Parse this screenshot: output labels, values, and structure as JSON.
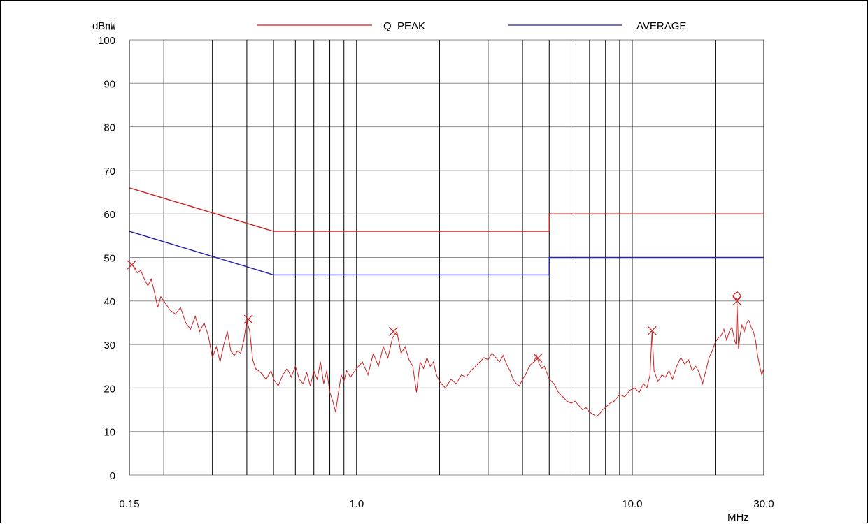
{
  "chart_data": {
    "type": "line",
    "title": "",
    "ylabel": "dB㎻",
    "xlabel": "MHz",
    "x_scale": "log",
    "xlim": [
      0.15,
      30.0
    ],
    "ylim": [
      0,
      100
    ],
    "y_ticks": [
      "0",
      "10",
      "20",
      "30",
      "40",
      "50",
      "60",
      "70",
      "80",
      "90",
      "100"
    ],
    "x_tick_labels": [
      {
        "value": 0.15,
        "label": "0.15"
      },
      {
        "value": 1.0,
        "label": "1.0"
      },
      {
        "value": 10.0,
        "label": "10.0"
      },
      {
        "value": 30.0,
        "label": "30.0"
      }
    ],
    "x_gridlines": [
      0.2,
      0.3,
      0.4,
      0.5,
      0.6,
      0.7,
      0.8,
      0.9,
      1.0,
      2,
      3,
      4,
      5,
      6,
      7,
      8,
      9,
      10,
      20,
      30
    ],
    "grid": true,
    "legend_position": "top",
    "series": [
      {
        "name": "Q_PEAK",
        "color": "#cc2222",
        "role": "limit",
        "points": [
          [
            0.15,
            66
          ],
          [
            0.5,
            56
          ],
          [
            5.0,
            56
          ],
          [
            5.0,
            60
          ],
          [
            30.0,
            60
          ]
        ]
      },
      {
        "name": "AVERAGE",
        "color": "#2222aa",
        "role": "limit",
        "points": [
          [
            0.15,
            56
          ],
          [
            0.5,
            46
          ],
          [
            5.0,
            46
          ],
          [
            5.0,
            50
          ],
          [
            30.0,
            50
          ]
        ]
      }
    ],
    "measurement": {
      "color": "#cc2222",
      "points": [
        [
          0.15,
          49
        ],
        [
          0.155,
          48
        ],
        [
          0.16,
          46.5
        ],
        [
          0.165,
          47
        ],
        [
          0.17,
          45
        ],
        [
          0.175,
          43.5
        ],
        [
          0.18,
          45
        ],
        [
          0.185,
          42
        ],
        [
          0.19,
          38.5
        ],
        [
          0.195,
          41
        ],
        [
          0.2,
          40
        ],
        [
          0.21,
          38
        ],
        [
          0.22,
          37
        ],
        [
          0.23,
          38.5
        ],
        [
          0.24,
          35
        ],
        [
          0.25,
          33.5
        ],
        [
          0.26,
          36.5
        ],
        [
          0.27,
          33
        ],
        [
          0.28,
          35
        ],
        [
          0.29,
          32
        ],
        [
          0.3,
          27
        ],
        [
          0.31,
          29.5
        ],
        [
          0.32,
          26
        ],
        [
          0.33,
          30
        ],
        [
          0.34,
          33
        ],
        [
          0.35,
          28.5
        ],
        [
          0.36,
          27.5
        ],
        [
          0.37,
          28.5
        ],
        [
          0.38,
          28
        ],
        [
          0.39,
          31
        ],
        [
          0.4,
          35.5
        ],
        [
          0.41,
          33
        ],
        [
          0.42,
          26.5
        ],
        [
          0.43,
          24.5
        ],
        [
          0.45,
          23.5
        ],
        [
          0.47,
          22
        ],
        [
          0.49,
          24
        ],
        [
          0.5,
          22
        ],
        [
          0.52,
          20.5
        ],
        [
          0.54,
          23
        ],
        [
          0.56,
          24.5
        ],
        [
          0.58,
          22.5
        ],
        [
          0.6,
          25
        ],
        [
          0.62,
          22
        ],
        [
          0.64,
          21
        ],
        [
          0.66,
          23.5
        ],
        [
          0.68,
          20.5
        ],
        [
          0.7,
          24
        ],
        [
          0.72,
          22
        ],
        [
          0.74,
          26
        ],
        [
          0.76,
          21
        ],
        [
          0.78,
          24
        ],
        [
          0.8,
          19
        ],
        [
          0.82,
          17
        ],
        [
          0.84,
          14.5
        ],
        [
          0.86,
          19
        ],
        [
          0.88,
          23
        ],
        [
          0.9,
          21.5
        ],
        [
          0.92,
          24
        ],
        [
          0.95,
          22.5
        ],
        [
          1.0,
          24.5
        ],
        [
          1.05,
          26
        ],
        [
          1.1,
          23
        ],
        [
          1.15,
          28
        ],
        [
          1.2,
          25
        ],
        [
          1.25,
          29.5
        ],
        [
          1.3,
          27
        ],
        [
          1.35,
          31.5
        ],
        [
          1.4,
          33
        ],
        [
          1.45,
          28
        ],
        [
          1.5,
          29.5
        ],
        [
          1.55,
          26.5
        ],
        [
          1.6,
          25
        ],
        [
          1.65,
          19
        ],
        [
          1.7,
          26
        ],
        [
          1.75,
          24.5
        ],
        [
          1.8,
          27
        ],
        [
          1.85,
          25
        ],
        [
          1.9,
          26
        ],
        [
          1.95,
          23
        ],
        [
          2.0,
          21.5
        ],
        [
          2.1,
          20
        ],
        [
          2.2,
          22
        ],
        [
          2.3,
          21
        ],
        [
          2.4,
          23
        ],
        [
          2.5,
          22.5
        ],
        [
          2.6,
          24
        ],
        [
          2.7,
          25
        ],
        [
          2.8,
          26
        ],
        [
          2.9,
          27
        ],
        [
          3.0,
          26.5
        ],
        [
          3.1,
          28
        ],
        [
          3.2,
          27
        ],
        [
          3.3,
          26
        ],
        [
          3.4,
          27.5
        ],
        [
          3.5,
          25.5
        ],
        [
          3.6,
          24
        ],
        [
          3.7,
          22
        ],
        [
          3.8,
          21
        ],
        [
          3.9,
          20.5
        ],
        [
          4.0,
          22
        ],
        [
          4.1,
          23
        ],
        [
          4.2,
          24.5
        ],
        [
          4.3,
          25.5
        ],
        [
          4.4,
          26
        ],
        [
          4.5,
          27.5
        ],
        [
          4.6,
          25.5
        ],
        [
          4.7,
          24.5
        ],
        [
          4.8,
          25
        ],
        [
          4.9,
          23.5
        ],
        [
          5.0,
          22
        ],
        [
          5.2,
          21
        ],
        [
          5.4,
          19
        ],
        [
          5.6,
          18
        ],
        [
          5.8,
          17
        ],
        [
          6.0,
          16.5
        ],
        [
          6.2,
          17
        ],
        [
          6.4,
          16
        ],
        [
          6.6,
          15
        ],
        [
          6.8,
          15.5
        ],
        [
          7.0,
          14.5
        ],
        [
          7.2,
          14
        ],
        [
          7.4,
          13.5
        ],
        [
          7.6,
          14
        ],
        [
          7.8,
          15
        ],
        [
          8.0,
          15.5
        ],
        [
          8.3,
          16.5
        ],
        [
          8.6,
          17
        ],
        [
          9.0,
          18.5
        ],
        [
          9.4,
          18
        ],
        [
          9.8,
          19.5
        ],
        [
          10.2,
          20
        ],
        [
          10.6,
          19
        ],
        [
          11.0,
          21
        ],
        [
          11.3,
          20
        ],
        [
          11.6,
          23
        ],
        [
          11.8,
          33
        ],
        [
          12.0,
          24
        ],
        [
          12.4,
          21.5
        ],
        [
          12.8,
          23
        ],
        [
          13.2,
          22.5
        ],
        [
          13.6,
          24
        ],
        [
          14.0,
          22
        ],
        [
          14.5,
          25
        ],
        [
          15.0,
          27
        ],
        [
          15.5,
          25.5
        ],
        [
          16.0,
          26.5
        ],
        [
          16.5,
          24
        ],
        [
          17.0,
          25
        ],
        [
          17.5,
          23.5
        ],
        [
          18.0,
          21
        ],
        [
          18.5,
          24
        ],
        [
          19.0,
          27
        ],
        [
          19.5,
          28.5
        ],
        [
          20.0,
          30.5
        ],
        [
          20.5,
          31.5
        ],
        [
          21.0,
          32
        ],
        [
          21.5,
          33.5
        ],
        [
          22.0,
          31
        ],
        [
          22.5,
          33
        ],
        [
          23.0,
          34
        ],
        [
          23.5,
          31
        ],
        [
          23.8,
          30
        ],
        [
          24.0,
          39.5
        ],
        [
          24.3,
          29
        ],
        [
          24.6,
          32
        ],
        [
          25.0,
          34.5
        ],
        [
          25.5,
          33
        ],
        [
          26.0,
          35
        ],
        [
          26.5,
          35.5
        ],
        [
          27.0,
          34
        ],
        [
          27.5,
          33
        ],
        [
          28.0,
          31
        ],
        [
          28.5,
          27.5
        ],
        [
          29.0,
          25
        ],
        [
          29.5,
          23
        ],
        [
          30.0,
          24.5
        ]
      ]
    },
    "markers": [
      {
        "x": 0.153,
        "y": 48.3,
        "shape": "x"
      },
      {
        "x": 0.405,
        "y": 35.8,
        "shape": "x"
      },
      {
        "x": 1.36,
        "y": 33.0,
        "shape": "x"
      },
      {
        "x": 4.55,
        "y": 26.9,
        "shape": "x"
      },
      {
        "x": 11.8,
        "y": 33.2,
        "shape": "x"
      },
      {
        "x": 24.0,
        "y": 40.0,
        "shape": "x"
      },
      {
        "x": 24.0,
        "y": 41.2,
        "shape": "diamond"
      }
    ]
  }
}
